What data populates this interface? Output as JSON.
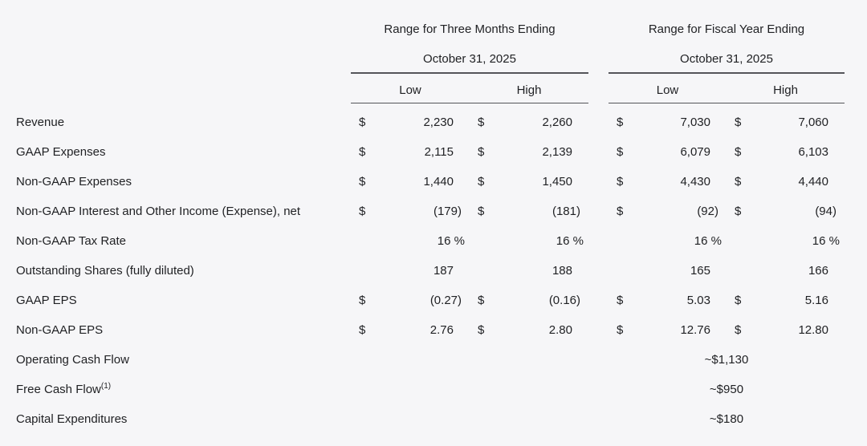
{
  "page": {
    "background_color": "#f6f6f8",
    "text_color": "#1f2023",
    "rule_color": "#54555a"
  },
  "table": {
    "groups": [
      {
        "title": "Range for Three Months Ending",
        "date": "October 31, 2025",
        "low_label": "Low",
        "high_label": "High"
      },
      {
        "title": "Range for Fiscal Year Ending",
        "date": "October 31, 2025",
        "low_label": "Low",
        "high_label": "High"
      }
    ],
    "rows": [
      {
        "label": "Revenue",
        "q_cur1": "$",
        "q_low": "2,230",
        "q_cur2": "$",
        "q_high": "2,260",
        "y_cur1": "$",
        "y_low": "7,030",
        "y_cur2": "$",
        "y_high": "7,060"
      },
      {
        "label": "GAAP Expenses",
        "q_cur1": "$",
        "q_low": "2,115",
        "q_cur2": "$",
        "q_high": "2,139",
        "y_cur1": "$",
        "y_low": "6,079",
        "y_cur2": "$",
        "y_high": "6,103"
      },
      {
        "label": "Non-GAAP Expenses",
        "q_cur1": "$",
        "q_low": "1,440",
        "q_cur2": "$",
        "q_high": "1,450",
        "y_cur1": "$",
        "y_low": "4,430",
        "y_cur2": "$",
        "y_high": "4,440"
      },
      {
        "label": "Non-GAAP Interest and Other Income (Expense), net",
        "q_cur1": "$",
        "q_low": "(179)",
        "q_cur2": "$",
        "q_high": "(181)",
        "y_cur1": "$",
        "y_low": "(92)",
        "y_cur2": "$",
        "y_high": "(94)"
      },
      {
        "label": "Non-GAAP Tax Rate",
        "q_low": "16 %",
        "q_high": "16 %",
        "y_low": "16 %",
        "y_high": "16 %"
      },
      {
        "label": "Outstanding Shares (fully diluted)",
        "q_low": "187",
        "q_high": "188",
        "y_low": "165",
        "y_high": "166"
      },
      {
        "label": "GAAP EPS",
        "q_cur1": "$",
        "q_low": "(0.27)",
        "q_cur2": "$",
        "q_high": "(0.16)",
        "y_cur1": "$",
        "y_low": "5.03",
        "y_cur2": "$",
        "y_high": "5.16"
      },
      {
        "label": "Non-GAAP EPS",
        "q_cur1": "$",
        "q_low": "2.76",
        "q_cur2": "$",
        "q_high": "2.80",
        "y_cur1": "$",
        "y_low": "12.76",
        "y_cur2": "$",
        "y_high": "12.80"
      },
      {
        "label": "Operating Cash Flow",
        "y_center": "~$1,130"
      },
      {
        "label": "Free Cash Flow",
        "label_sup": "(1)",
        "y_center": "~$950"
      },
      {
        "label": "Capital Expenditures",
        "y_center": "~$180"
      }
    ]
  }
}
